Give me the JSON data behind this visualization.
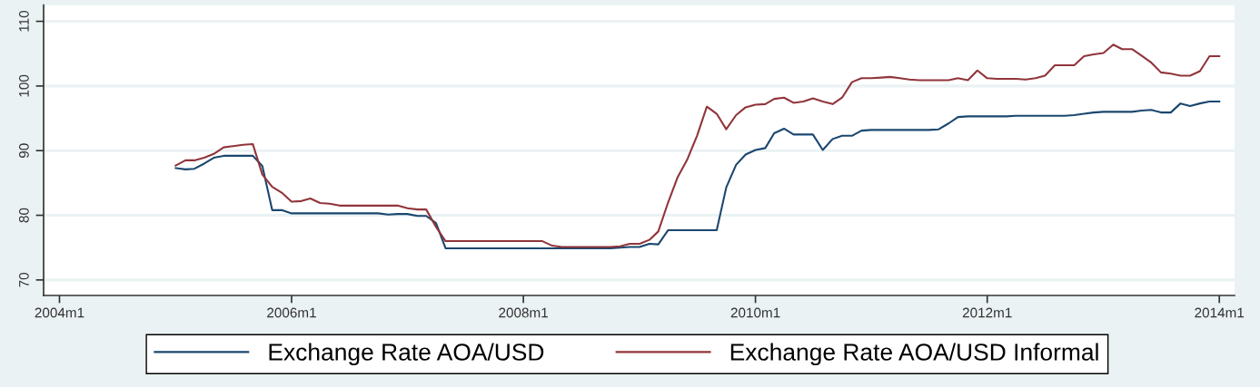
{
  "chart_data": {
    "type": "line",
    "x": [
      "2005-01",
      "2005-02",
      "2005-03",
      "2005-04",
      "2005-05",
      "2005-06",
      "2005-07",
      "2005-08",
      "2005-09",
      "2005-10",
      "2005-11",
      "2005-12",
      "2006-01",
      "2006-02",
      "2006-03",
      "2006-04",
      "2006-05",
      "2006-06",
      "2006-07",
      "2006-08",
      "2006-09",
      "2006-10",
      "2006-11",
      "2006-12",
      "2007-01",
      "2007-02",
      "2007-03",
      "2007-04",
      "2007-05",
      "2007-06",
      "2007-07",
      "2007-08",
      "2007-09",
      "2007-10",
      "2007-11",
      "2007-12",
      "2008-01",
      "2008-02",
      "2008-03",
      "2008-04",
      "2008-05",
      "2008-06",
      "2008-07",
      "2008-08",
      "2008-09",
      "2008-10",
      "2008-11",
      "2008-12",
      "2009-01",
      "2009-02",
      "2009-03",
      "2009-04",
      "2009-05",
      "2009-06",
      "2009-07",
      "2009-08",
      "2009-09",
      "2009-10",
      "2009-11",
      "2009-12",
      "2010-01",
      "2010-02",
      "2010-03",
      "2010-04",
      "2010-05",
      "2010-06",
      "2010-07",
      "2010-08",
      "2010-09",
      "2010-10",
      "2010-11",
      "2010-12",
      "2011-01",
      "2011-02",
      "2011-03",
      "2011-04",
      "2011-05",
      "2011-06",
      "2011-07",
      "2011-08",
      "2011-09",
      "2011-10",
      "2011-11",
      "2011-12",
      "2012-01",
      "2012-02",
      "2012-03",
      "2012-04",
      "2012-05",
      "2012-06",
      "2012-07",
      "2012-08",
      "2012-09",
      "2012-10",
      "2012-11",
      "2012-12",
      "2013-01",
      "2013-02",
      "2013-03",
      "2013-04",
      "2013-05",
      "2013-06",
      "2013-07",
      "2013-08",
      "2013-09",
      "2013-10",
      "2013-11",
      "2013-12",
      "2014-01"
    ],
    "series": [
      {
        "name": "Exchange Rate AOA/USD",
        "color": "#1a476f",
        "values": [
          87.3,
          87.1,
          87.2,
          88.0,
          88.9,
          89.2,
          89.2,
          89.2,
          89.2,
          87.6,
          80.8,
          80.8,
          80.3,
          80.3,
          80.3,
          80.3,
          80.3,
          80.3,
          80.3,
          80.3,
          80.3,
          80.3,
          80.1,
          80.2,
          80.2,
          79.9,
          79.9,
          78.8,
          74.9,
          74.9,
          74.9,
          74.9,
          74.9,
          74.9,
          74.9,
          74.9,
          74.9,
          74.9,
          74.9,
          74.9,
          74.9,
          74.9,
          74.9,
          74.9,
          74.9,
          74.9,
          75.0,
          75.1,
          75.1,
          75.6,
          75.5,
          77.7,
          77.7,
          77.7,
          77.7,
          77.7,
          77.7,
          84.3,
          87.8,
          89.4,
          90.1,
          90.4,
          92.7,
          93.4,
          92.5,
          92.5,
          92.5,
          90.1,
          91.8,
          92.3,
          92.3,
          93.1,
          93.2,
          93.2,
          93.2,
          93.2,
          93.2,
          93.2,
          93.2,
          93.3,
          94.2,
          95.2,
          95.3,
          95.3,
          95.3,
          95.3,
          95.3,
          95.4,
          95.4,
          95.4,
          95.4,
          95.4,
          95.4,
          95.5,
          95.7,
          95.9,
          96.0,
          96.0,
          96.0,
          96.0,
          96.2,
          96.3,
          95.9,
          95.9,
          97.3,
          96.9,
          97.3,
          97.6,
          97.6
        ]
      },
      {
        "name": "Exchange Rate AOA/USD Informal",
        "color": "#90353b",
        "values": [
          87.7,
          88.5,
          88.5,
          88.9,
          89.5,
          90.5,
          90.7,
          90.9,
          91.0,
          86.3,
          84.4,
          83.5,
          82.1,
          82.2,
          82.6,
          81.9,
          81.8,
          81.5,
          81.5,
          81.5,
          81.5,
          81.5,
          81.5,
          81.5,
          81.1,
          80.9,
          80.9,
          78.2,
          76.0,
          76.0,
          76.0,
          76.0,
          76.0,
          76.0,
          76.0,
          76.0,
          76.0,
          76.0,
          76.0,
          75.3,
          75.1,
          75.1,
          75.1,
          75.1,
          75.1,
          75.1,
          75.2,
          75.6,
          75.6,
          76.2,
          77.5,
          82.0,
          85.9,
          88.7,
          92.3,
          96.8,
          95.7,
          93.3,
          95.5,
          96.7,
          97.1,
          97.2,
          98.0,
          98.2,
          97.4,
          97.6,
          98.1,
          97.6,
          97.2,
          98.2,
          100.6,
          101.2,
          101.2,
          101.3,
          101.4,
          101.2,
          101.0,
          100.9,
          100.9,
          100.9,
          100.9,
          101.2,
          100.9,
          102.4,
          101.2,
          101.1,
          101.1,
          101.1,
          101.0,
          101.2,
          101.6,
          103.2,
          103.2,
          103.2,
          104.6,
          104.9,
          105.1,
          106.4,
          105.7,
          105.7,
          104.7,
          103.6,
          102.1,
          101.9,
          101.6,
          101.6,
          102.3,
          104.6,
          104.6
        ]
      }
    ],
    "xlim": [
      "2003-11-12",
      "2014-02-18"
    ],
    "xticks": [
      {
        "value": "2004-01",
        "label": "2004m1"
      },
      {
        "value": "2006-01",
        "label": "2006m1"
      },
      {
        "value": "2008-01",
        "label": "2008m1"
      },
      {
        "value": "2010-01",
        "label": "2010m1"
      },
      {
        "value": "2012-01",
        "label": "2012m1"
      },
      {
        "value": "2014-01",
        "label": "2014m1"
      }
    ],
    "ylim": [
      67.6,
      112.5
    ],
    "yticks": [
      70,
      80,
      90,
      100,
      110
    ],
    "grid": "y",
    "legend": "bottom"
  }
}
